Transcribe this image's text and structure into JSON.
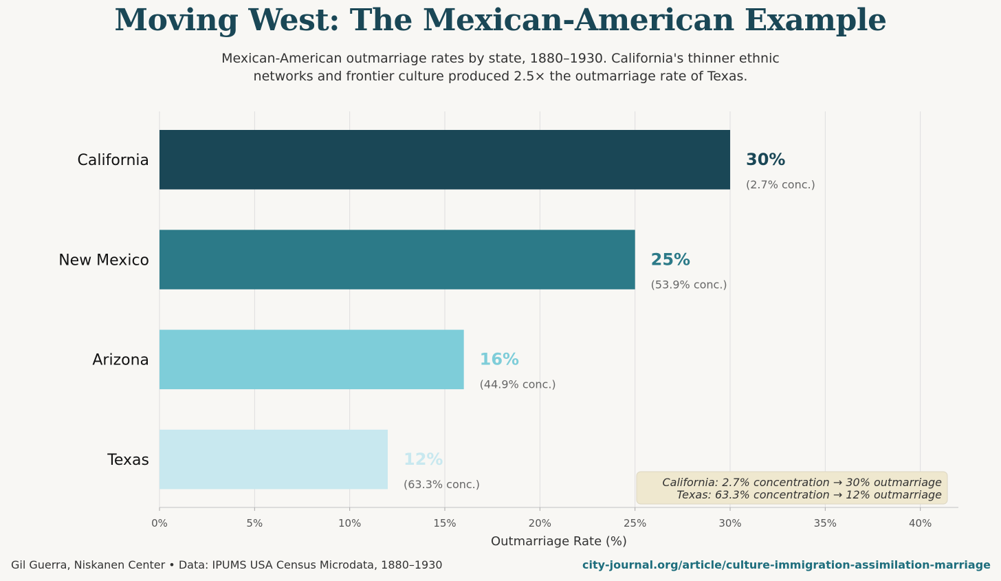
{
  "title": "Moving West: The Mexican-American Example",
  "subtitle_line1": "Mexican-American outmarriage rates by state, 1880–1930. California's thinner ethnic",
  "subtitle_line2": "networks and frontier culture produced 2.5× the outmarriage rate of Texas.",
  "footer": {
    "source": "Gil Guerra, Niskanen Center  •  Data: IPUMS USA Census Microdata, 1880–1930",
    "url": "city-journal.org/article/culture-immigration-assimilation-marriage"
  },
  "chart_data": {
    "type": "bar",
    "orientation": "horizontal",
    "categories": [
      "California",
      "New Mexico",
      "Arizona",
      "Texas"
    ],
    "values": [
      30,
      25,
      16,
      12
    ],
    "value_labels": [
      "30%",
      "25%",
      "16%",
      "12%"
    ],
    "sub_labels": [
      "(2.7% conc.)",
      "(53.9% conc.)",
      "(44.9% conc.)",
      "(63.3% conc.)"
    ],
    "colors": [
      "#1a4756",
      "#2c7a88",
      "#7ecdd9",
      "#c8e8ef"
    ],
    "label_colors": [
      "#1a4756",
      "#2c7a88",
      "#7ecdd9",
      "#c8e8ef"
    ],
    "xlabel": "Outmarriage Rate (%)",
    "xlim": [
      0,
      42
    ],
    "x_ticks": [
      0,
      5,
      10,
      15,
      20,
      25,
      30,
      35,
      40
    ],
    "x_tick_labels": [
      "0%",
      "5%",
      "10%",
      "15%",
      "20%",
      "25%",
      "30%",
      "35%",
      "40%"
    ],
    "grid": true,
    "annotation": {
      "line1": "California: 2.7% concentration → 30% outmarriage",
      "line2": "Texas: 63.3% concentration → 12% outmarriage"
    }
  }
}
